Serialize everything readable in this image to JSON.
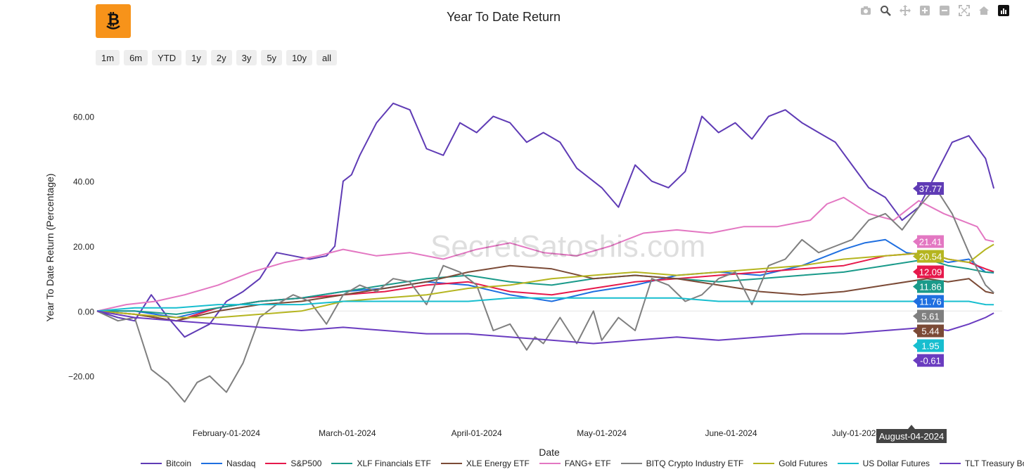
{
  "title": "Year To Date Return",
  "watermark": "SecretSatoshis.com",
  "range_buttons": [
    "1m",
    "6m",
    "YTD",
    "1y",
    "2y",
    "3y",
    "5y",
    "10y",
    "all"
  ],
  "hover_date": "August-04-2024",
  "colors": {
    "Bitcoin": "#5f3bb5",
    "Nasdaq": "#1f6fe0",
    "S&P500": "#e6194b",
    "XLF Financials ETF": "#1a9a8a",
    "XLE Energy ETF": "#7b4a36",
    "FANG+ ETF": "#e377c2",
    "BITQ Crypto Industry ETF": "#7f7f7f",
    "Gold Futures": "#b5b520",
    "US Dollar Futures": "#17becf",
    "TLT Treasury Bond ETF": "#6a3cc0"
  },
  "chart_data": {
    "type": "line",
    "title": "Year To Date Return",
    "xlabel": "Date",
    "ylabel": "Year To Date Return (Percentage)",
    "ylim": [
      -32,
      72
    ],
    "yticks": [
      -20,
      0,
      20,
      40,
      60
    ],
    "ytick_labels": [
      "−20.00",
      "0.00",
      "20.00",
      "40.00",
      "60.00"
    ],
    "xlim": [
      1,
      218
    ],
    "xticks": [
      32,
      61,
      92,
      122,
      153,
      183
    ],
    "xtick_labels": [
      "February-01-2024",
      "March-01-2024",
      "April-01-2024",
      "May-01-2024",
      "June-01-2024",
      "July-01-2024"
    ],
    "series": [
      {
        "name": "Bitcoin",
        "x": [
          1,
          6,
          10,
          14,
          18,
          22,
          25,
          28,
          32,
          36,
          40,
          44,
          48,
          52,
          56,
          58,
          60,
          62,
          64,
          68,
          72,
          76,
          80,
          84,
          88,
          92,
          96,
          100,
          104,
          108,
          112,
          116,
          120,
          122,
          126,
          130,
          134,
          138,
          142,
          146,
          150,
          154,
          158,
          162,
          166,
          170,
          174,
          178,
          182,
          186,
          190,
          194,
          198,
          202,
          206,
          210,
          214,
          216
        ],
        "values": [
          0,
          -2,
          -3,
          5,
          -2,
          -8,
          -6,
          -4,
          3,
          6,
          10,
          18,
          17,
          16,
          17,
          20,
          40,
          42,
          48,
          58,
          64,
          62,
          50,
          48,
          58,
          55,
          60,
          58,
          52,
          55,
          52,
          44,
          40,
          38,
          32,
          45,
          40,
          38,
          43,
          60,
          55,
          58,
          53,
          60,
          62,
          58,
          55,
          52,
          45,
          38,
          35,
          28,
          32,
          42,
          52,
          54,
          47,
          37.77
        ],
        "end_label": "37.77"
      },
      {
        "name": "Nasdaq",
        "x": [
          1,
          10,
          20,
          30,
          40,
          50,
          60,
          70,
          80,
          90,
          100,
          110,
          120,
          130,
          140,
          150,
          160,
          170,
          180,
          185,
          190,
          195,
          200,
          205,
          210,
          214,
          216
        ],
        "values": [
          0,
          0,
          -2,
          1,
          3,
          4,
          6,
          7,
          9,
          8,
          5,
          3,
          6,
          8,
          11,
          12,
          11,
          14,
          19,
          21,
          22,
          18,
          17,
          15,
          16,
          12,
          11.76
        ],
        "end_label": "11.76"
      },
      {
        "name": "S&P500",
        "x": [
          1,
          10,
          20,
          30,
          40,
          50,
          60,
          70,
          80,
          90,
          100,
          110,
          120,
          130,
          140,
          150,
          160,
          170,
          180,
          190,
          200,
          205,
          210,
          214,
          216
        ],
        "values": [
          0,
          -1,
          -3,
          1,
          3,
          4,
          5,
          6,
          8,
          9,
          6,
          5,
          7,
          9,
          10,
          11,
          12,
          13,
          14,
          17,
          18,
          16,
          15,
          13,
          12.09
        ],
        "end_label": "12.09"
      },
      {
        "name": "XLF Financials ETF",
        "x": [
          1,
          10,
          20,
          30,
          40,
          50,
          60,
          70,
          80,
          90,
          100,
          110,
          120,
          130,
          140,
          150,
          160,
          170,
          180,
          190,
          200,
          205,
          210,
          214,
          216
        ],
        "values": [
          0,
          0,
          -1,
          1,
          3,
          4,
          6,
          8,
          10,
          11,
          9,
          8,
          10,
          11,
          10,
          9,
          10,
          11,
          12,
          14,
          16,
          14,
          13,
          12,
          11.86
        ],
        "end_label": "11.86"
      },
      {
        "name": "XLE Energy ETF",
        "x": [
          1,
          10,
          20,
          30,
          40,
          50,
          60,
          70,
          80,
          90,
          100,
          110,
          120,
          130,
          140,
          150,
          160,
          170,
          180,
          190,
          200,
          205,
          210,
          214,
          216
        ],
        "values": [
          0,
          -1,
          -3,
          0,
          2,
          3,
          5,
          7,
          9,
          12,
          14,
          13,
          10,
          11,
          10,
          8,
          6,
          5,
          6,
          8,
          10,
          9,
          10,
          6,
          5.44
        ],
        "end_label": "5.44"
      },
      {
        "name": "FANG+ ETF",
        "x": [
          1,
          8,
          15,
          22,
          30,
          38,
          46,
          54,
          60,
          68,
          76,
          84,
          92,
          100,
          108,
          116,
          124,
          132,
          140,
          148,
          156,
          164,
          172,
          176,
          180,
          186,
          192,
          198,
          204,
          208,
          212,
          214,
          216
        ],
        "values": [
          0,
          2,
          3,
          5,
          8,
          12,
          15,
          17,
          19,
          17,
          18,
          16,
          19,
          21,
          18,
          17,
          20,
          24,
          25,
          24,
          26,
          26,
          28,
          33,
          35,
          30,
          28,
          34,
          30,
          28,
          26,
          22,
          21.41
        ],
        "end_label": "21.41"
      },
      {
        "name": "BITQ Crypto Industry ETF",
        "x": [
          1,
          6,
          10,
          14,
          18,
          22,
          25,
          28,
          32,
          36,
          40,
          44,
          48,
          52,
          56,
          60,
          64,
          68,
          72,
          76,
          80,
          84,
          88,
          92,
          96,
          100,
          104,
          106,
          108,
          112,
          116,
          120,
          122,
          126,
          130,
          134,
          138,
          142,
          146,
          150,
          154,
          158,
          162,
          166,
          170,
          174,
          178,
          182,
          186,
          190,
          194,
          198,
          202,
          206,
          210,
          214,
          216
        ],
        "values": [
          0,
          -3,
          -2,
          -18,
          -22,
          -28,
          -22,
          -20,
          -25,
          -16,
          -2,
          2,
          5,
          3,
          -4,
          5,
          8,
          6,
          10,
          9,
          2,
          14,
          12,
          8,
          -6,
          -4,
          -12,
          -8,
          -10,
          -2,
          -10,
          0,
          -9,
          -2,
          -6,
          10,
          8,
          3,
          5,
          10,
          12,
          2,
          14,
          16,
          22,
          18,
          20,
          22,
          28,
          30,
          25,
          32,
          38,
          30,
          18,
          8,
          5.61
        ],
        "end_label": "5.61"
      },
      {
        "name": "Gold Futures",
        "x": [
          1,
          10,
          20,
          30,
          40,
          50,
          60,
          70,
          80,
          90,
          100,
          110,
          120,
          130,
          140,
          150,
          160,
          170,
          180,
          190,
          200,
          205,
          210,
          214,
          216
        ],
        "values": [
          0,
          -1,
          -2,
          -2,
          -1,
          0,
          3,
          4,
          5,
          7,
          8,
          10,
          11,
          12,
          11,
          12,
          13,
          14,
          16,
          17,
          18,
          16,
          15,
          19,
          20.54
        ],
        "end_label": "20.54"
      },
      {
        "name": "US Dollar Futures",
        "x": [
          1,
          10,
          20,
          30,
          40,
          50,
          60,
          70,
          80,
          90,
          100,
          110,
          120,
          130,
          140,
          150,
          160,
          170,
          180,
          190,
          200,
          205,
          210,
          214,
          216
        ],
        "values": [
          0,
          1,
          1,
          2,
          2,
          2,
          3,
          3,
          3,
          3,
          4,
          4,
          4,
          4,
          4,
          3,
          3,
          3,
          3,
          3,
          3,
          3,
          3,
          2,
          1.95
        ],
        "end_label": "1.95"
      },
      {
        "name": "TLT Treasury Bond ETF",
        "x": [
          1,
          10,
          20,
          30,
          40,
          50,
          60,
          70,
          80,
          90,
          100,
          110,
          120,
          130,
          140,
          150,
          160,
          170,
          180,
          190,
          200,
          205,
          210,
          214,
          216
        ],
        "values": [
          0,
          -2,
          -3,
          -4,
          -5,
          -6,
          -5,
          -6,
          -7,
          -7,
          -8,
          -9,
          -10,
          -9,
          -8,
          -9,
          -8,
          -7,
          -7,
          -6,
          -5,
          -6,
          -4,
          -2,
          -0.61
        ],
        "end_label": "-0.61"
      }
    ]
  }
}
